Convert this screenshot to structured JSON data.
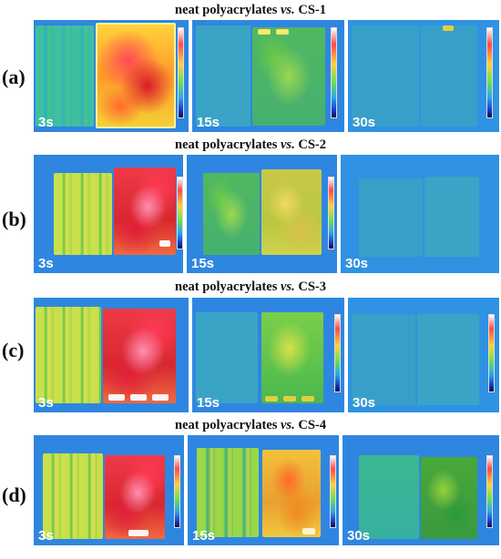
{
  "rows": [
    {
      "label": "(a)",
      "title_prefix": "neat polyacrylates ",
      "title_vs": "vs.",
      "title_suffix": " CS-1",
      "times": [
        "3s",
        "15s",
        "30s"
      ]
    },
    {
      "label": "(b)",
      "title_prefix": "neat polyacrylates ",
      "title_vs": "vs.",
      "title_suffix": " CS-2",
      "times": [
        "3s",
        "15s",
        "30s"
      ]
    },
    {
      "label": "(c)",
      "title_prefix": "neat polyacrylates ",
      "title_vs": "vs.",
      "title_suffix": " CS-3",
      "times": [
        "3s",
        "15s",
        "30s"
      ]
    },
    {
      "label": "(d)",
      "title_prefix": "neat polyacrylates ",
      "title_vs": "vs.",
      "title_suffix": " CS-4",
      "times": [
        "3s",
        "15s",
        "30s"
      ]
    }
  ],
  "colors": {
    "background": "#2f86e0",
    "hot": "#d81b2a",
    "warm": "#ffd33a",
    "cool": "#3aa4c6"
  }
}
